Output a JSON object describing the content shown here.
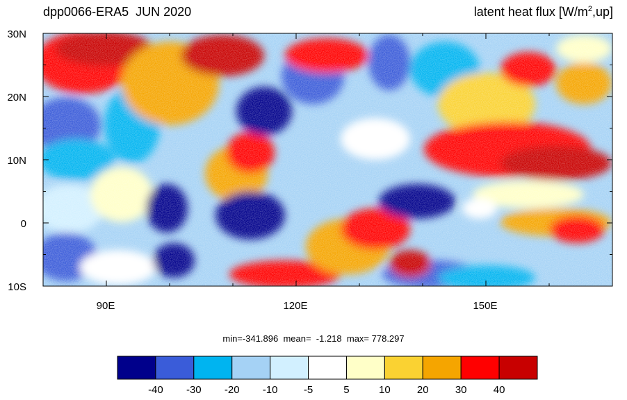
{
  "title_left": "dpp0066-ERA5  JUN 2020",
  "title_right": {
    "main": "latent heat flux [W/m",
    "sup": "2",
    "tail": ",up]"
  },
  "lat_labels": [
    "30N",
    "20N",
    "10N",
    "0",
    "10S"
  ],
  "lon_labels": [
    "90E",
    "120E",
    "150E"
  ],
  "stats": "min=-341.896  mean=  -1.218  max= 778.297",
  "colorbar": {
    "colors": [
      "#00008b",
      "#3a5cd9",
      "#00b4f0",
      "#a5d2f5",
      "#d2f0ff",
      "#ffffff",
      "#ffffc8",
      "#fad232",
      "#f5a500",
      "#ff0000",
      "#c80000"
    ],
    "labels": [
      "-40",
      "-30",
      "-20",
      "-10",
      "-5",
      "5",
      "10",
      "20",
      "30",
      "40"
    ]
  }
}
